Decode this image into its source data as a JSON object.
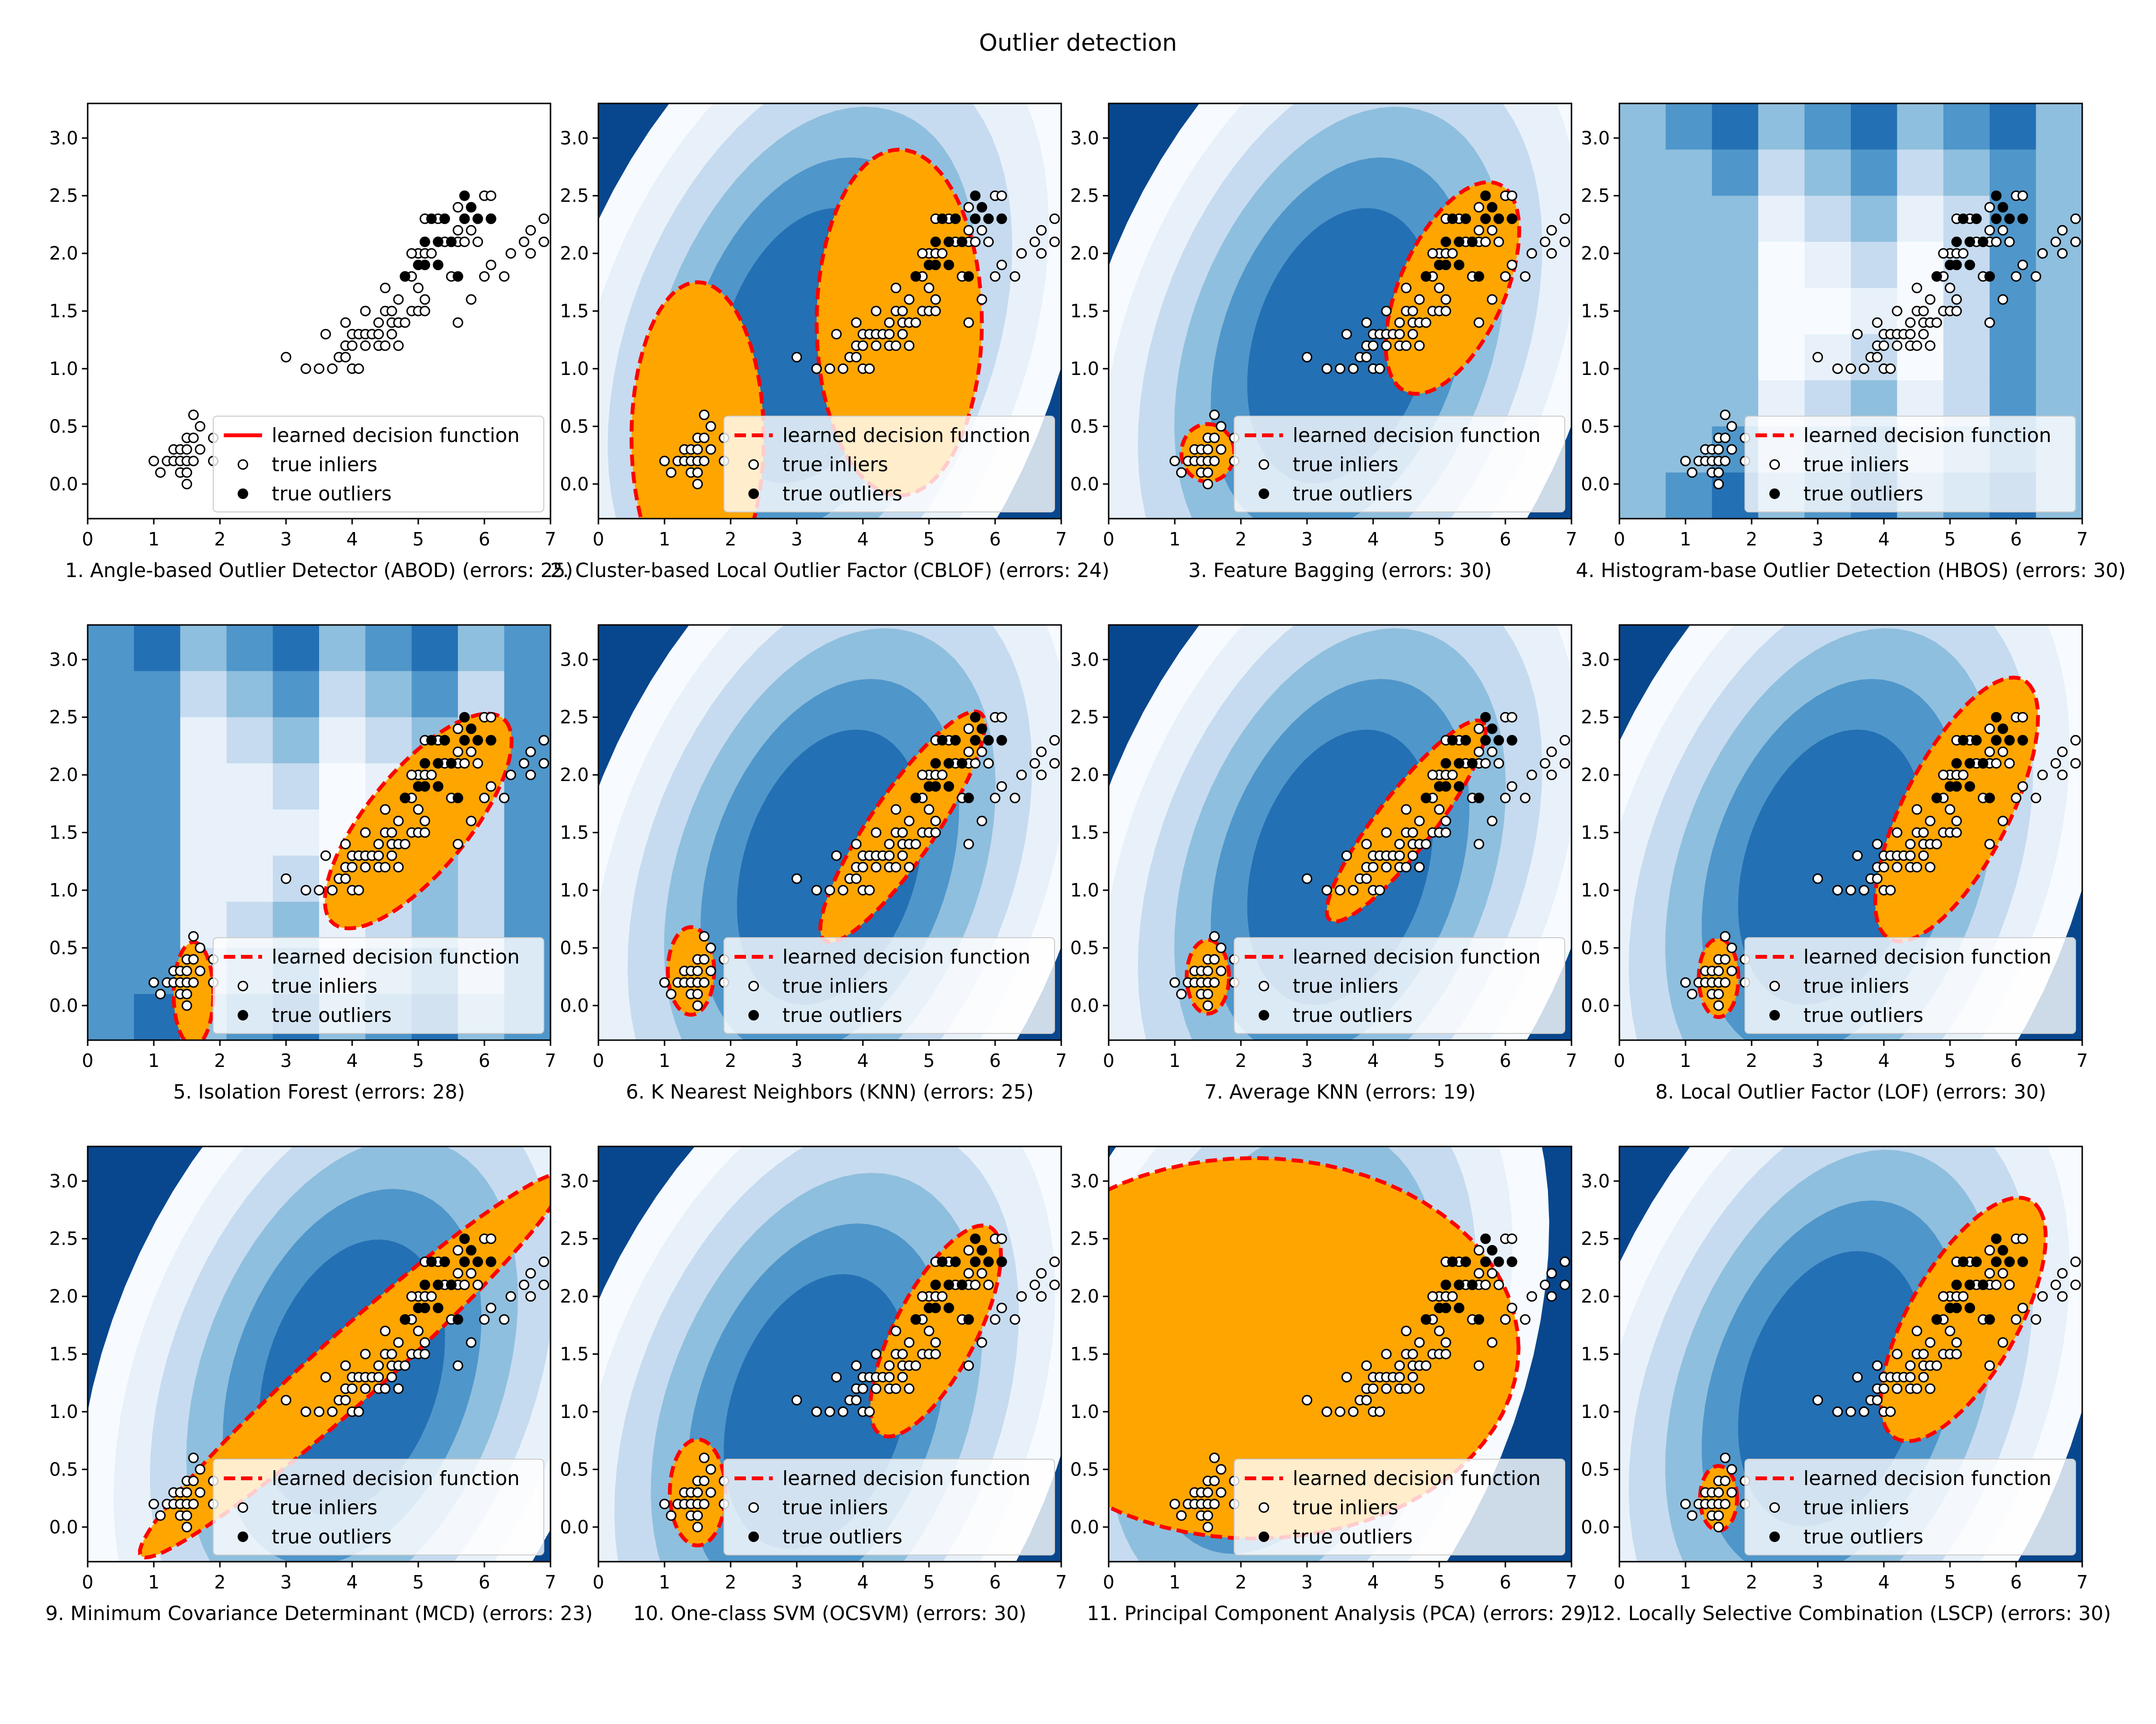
{
  "suptitle": "Outlier detection",
  "colors": {
    "band0": "#f7fbff",
    "band1": "#e8f1fa",
    "band2": "#c6dbef",
    "band3": "#8fbfde",
    "band4": "#4f96ca",
    "band5": "#2470b4",
    "band6": "#08478e",
    "fill": "#ffa500",
    "boundary": "#ff0000",
    "inlier_face": "#ffffff",
    "outlier_face": "#000000"
  },
  "legend": {
    "boundary": "learned decision function",
    "inliers": "true inliers",
    "outliers": "true outliers"
  },
  "chart_data": {
    "type": "scatter",
    "grid": false,
    "legend_position": "lower-right",
    "xlim": [
      0,
      7
    ],
    "ylim": [
      -0.3,
      3.3
    ],
    "xticks": [
      "0",
      "1",
      "2",
      "3",
      "4",
      "5",
      "6",
      "7"
    ],
    "yticks": [
      "0.0",
      "0.5",
      "1.0",
      "1.5",
      "2.0",
      "2.5",
      "3.0"
    ],
    "inliers": [
      [
        1.0,
        0.2
      ],
      [
        1.1,
        0.1
      ],
      [
        1.2,
        0.2
      ],
      [
        1.3,
        0.2
      ],
      [
        1.3,
        0.3
      ],
      [
        1.4,
        0.1
      ],
      [
        1.4,
        0.2
      ],
      [
        1.4,
        0.3
      ],
      [
        1.5,
        0.1
      ],
      [
        1.5,
        0.2
      ],
      [
        1.5,
        0.3
      ],
      [
        1.5,
        0.4
      ],
      [
        1.6,
        0.2
      ],
      [
        1.6,
        0.4
      ],
      [
        1.6,
        0.6
      ],
      [
        1.7,
        0.3
      ],
      [
        1.7,
        0.5
      ],
      [
        1.9,
        0.2
      ],
      [
        1.9,
        0.4
      ],
      [
        1.5,
        0.0
      ],
      [
        3.0,
        1.1
      ],
      [
        3.3,
        1.0
      ],
      [
        3.5,
        1.0
      ],
      [
        3.6,
        1.3
      ],
      [
        3.7,
        1.0
      ],
      [
        3.8,
        1.1
      ],
      [
        3.9,
        1.1
      ],
      [
        3.9,
        1.4
      ],
      [
        3.9,
        1.2
      ],
      [
        4.0,
        1.0
      ],
      [
        4.0,
        1.3
      ],
      [
        4.0,
        1.2
      ],
      [
        4.1,
        1.0
      ],
      [
        4.1,
        1.3
      ],
      [
        4.2,
        1.2
      ],
      [
        4.2,
        1.3
      ],
      [
        4.2,
        1.5
      ],
      [
        4.3,
        1.3
      ],
      [
        4.4,
        1.4
      ],
      [
        4.4,
        1.2
      ],
      [
        4.4,
        1.3
      ],
      [
        4.5,
        1.5
      ],
      [
        4.5,
        1.7
      ],
      [
        4.6,
        1.4
      ],
      [
        4.6,
        1.5
      ],
      [
        4.6,
        1.3
      ],
      [
        4.7,
        1.4
      ],
      [
        4.7,
        1.6
      ],
      [
        4.7,
        1.2
      ],
      [
        4.8,
        1.8
      ],
      [
        4.8,
        1.4
      ],
      [
        4.9,
        1.5
      ],
      [
        4.9,
        1.8
      ],
      [
        5.0,
        1.7
      ],
      [
        5.0,
        1.5
      ],
      [
        5.0,
        2.0
      ],
      [
        5.1,
        1.6
      ],
      [
        5.1,
        2.0
      ],
      [
        5.1,
        1.5
      ],
      [
        5.1,
        2.3
      ],
      [
        5.2,
        2.0
      ],
      [
        5.3,
        2.3
      ],
      [
        5.4,
        2.1
      ],
      [
        5.4,
        2.3
      ],
      [
        5.5,
        1.8
      ],
      [
        5.5,
        2.1
      ],
      [
        5.6,
        1.4
      ],
      [
        5.6,
        2.2
      ],
      [
        5.6,
        2.1
      ],
      [
        5.6,
        2.4
      ],
      [
        5.7,
        2.1
      ],
      [
        5.7,
        2.3
      ],
      [
        5.8,
        1.6
      ],
      [
        5.8,
        2.2
      ],
      [
        5.9,
        2.1
      ],
      [
        6.0,
        1.8
      ],
      [
        6.0,
        2.5
      ],
      [
        6.1,
        1.9
      ],
      [
        6.1,
        2.5
      ],
      [
        6.1,
        2.3
      ],
      [
        6.3,
        1.8
      ],
      [
        6.4,
        2.0
      ],
      [
        6.6,
        2.1
      ],
      [
        6.7,
        2.0
      ],
      [
        6.7,
        2.2
      ],
      [
        6.9,
        2.3
      ],
      [
        6.9,
        2.1
      ],
      [
        4.5,
        1.2
      ],
      [
        3.3,
        1.0
      ],
      [
        4.9,
        2.0
      ]
    ],
    "outliers": [
      [
        4.8,
        1.8
      ],
      [
        5.0,
        1.9
      ],
      [
        5.1,
        1.9
      ],
      [
        5.1,
        2.1
      ],
      [
        5.2,
        2.3
      ],
      [
        5.3,
        1.9
      ],
      [
        5.4,
        2.3
      ],
      [
        5.5,
        2.1
      ],
      [
        5.6,
        1.8
      ],
      [
        5.7,
        2.5
      ],
      [
        5.8,
        2.4
      ],
      [
        5.9,
        2.3
      ],
      [
        6.1,
        2.3
      ],
      [
        5.3,
        2.1
      ],
      [
        5.7,
        2.3
      ]
    ],
    "subplots": [
      {
        "title": "1. Angle-based Outlier Detector (ABOD) (errors: 25)"
      },
      {
        "title": "2. Cluster-based Local Outlier Factor (CBLOF) (errors: 24)"
      },
      {
        "title": "3. Feature Bagging (errors: 30)"
      },
      {
        "title": "4. Histogram-base Outlier Detection (HBOS) (errors: 30)"
      },
      {
        "title": "5. Isolation Forest (errors: 28)"
      },
      {
        "title": "6. K Nearest Neighbors (KNN) (errors: 25)"
      },
      {
        "title": "7. Average KNN (errors: 19)"
      },
      {
        "title": "8. Local Outlier Factor (LOF) (errors: 30)"
      },
      {
        "title": "9. Minimum Covariance Determinant (MCD) (errors: 23)"
      },
      {
        "title": "10. One-class SVM (OCSVM) (errors: 30)"
      },
      {
        "title": "11. Principal Component Analysis (PCA) (errors: 29)"
      },
      {
        "title": "12. Locally Selective Combination (LSCP) (errors: 30)"
      }
    ]
  }
}
